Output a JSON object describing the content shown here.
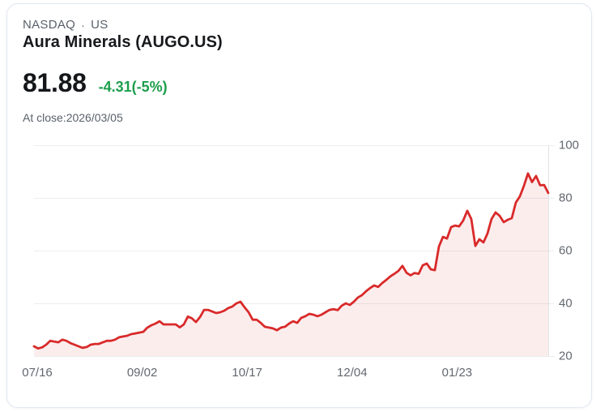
{
  "header": {
    "exchange": "NASDAQ",
    "separator": "·",
    "region": "US",
    "title": "Aura Minerals (AUGO.US)",
    "price": "81.88",
    "change": "-4.31(-5%)",
    "as_of": "At close:2026/03/05"
  },
  "colors": {
    "line": "#d92a2a",
    "fill": "rgba(217,42,42,0.085)",
    "change_green": "#1d9e4c",
    "grid": "#ebedef",
    "axis": "#e0e2e6"
  },
  "chart_data": {
    "type": "area",
    "title": "Aura Minerals (AUGO.US) closing price",
    "xlabel": "",
    "ylabel": "",
    "ylim": [
      20,
      100
    ],
    "grid": true,
    "legend": "none",
    "x_tick_labels": [
      "07/16",
      "09/02",
      "10/17",
      "12/04",
      "01/23"
    ],
    "y_tick_labels": [
      "100",
      "80",
      "60",
      "40",
      "20"
    ],
    "series": [
      {
        "name": "AUGO.US",
        "values": [
          23.7,
          22.9,
          23.3,
          24.3,
          25.8,
          25.5,
          25.2,
          26.2,
          25.8,
          24.9,
          24.3,
          23.7,
          23.1,
          23.4,
          24.3,
          24.6,
          24.6,
          25.2,
          25.8,
          25.8,
          26.2,
          27.1,
          27.4,
          27.7,
          28.3,
          28.6,
          28.9,
          29.2,
          30.8,
          31.7,
          32.3,
          33.2,
          32.0,
          32.0,
          32.0,
          32.0,
          30.9,
          32.0,
          35.0,
          34.3,
          32.9,
          34.8,
          37.5,
          37.5,
          36.9,
          36.3,
          36.6,
          37.2,
          38.2,
          38.8,
          40.0,
          40.6,
          38.5,
          36.6,
          33.8,
          33.8,
          32.6,
          31.1,
          30.8,
          30.5,
          29.8,
          30.8,
          31.1,
          32.3,
          33.2,
          32.6,
          34.5,
          35.1,
          36.0,
          35.7,
          35.1,
          35.7,
          36.6,
          37.5,
          37.8,
          37.4,
          39.1,
          40.0,
          39.4,
          40.6,
          42.2,
          43.1,
          44.6,
          45.8,
          46.8,
          46.2,
          47.7,
          48.9,
          50.2,
          51.2,
          52.3,
          54.2,
          51.6,
          50.6,
          51.5,
          51.2,
          54.4,
          55.1,
          52.9,
          52.6,
          61.5,
          65.2,
          64.6,
          68.9,
          69.5,
          69.2,
          71.4,
          75.1,
          72.0,
          61.8,
          64.3,
          63.1,
          66.5,
          72.0,
          74.5,
          73.2,
          70.8,
          71.7,
          72.3,
          78.2,
          80.6,
          84.6,
          89.3,
          86.0,
          88.3,
          84.8,
          84.9,
          81.88
        ]
      }
    ]
  }
}
